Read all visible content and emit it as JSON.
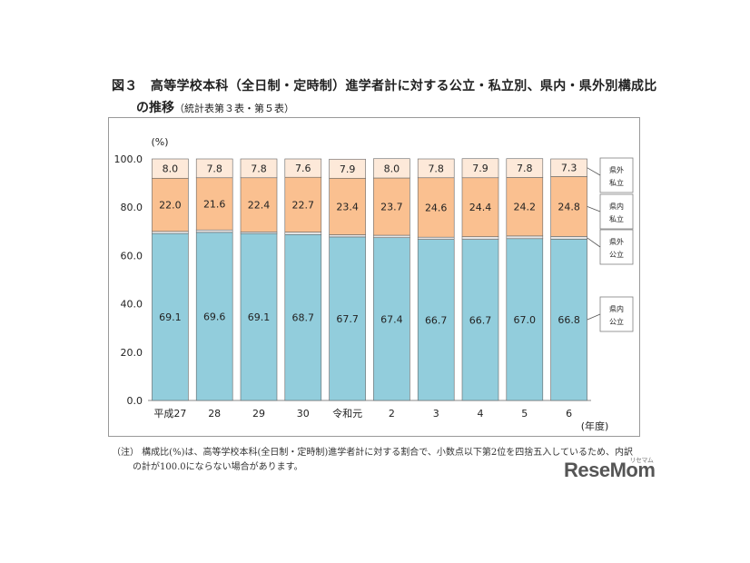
{
  "figure": {
    "title_line1": "図３　高等学校本科（全日制・定時制）進学者計に対する公立・私立別、県内・県外別構成比",
    "title_line2": "の推移",
    "title_source": "（統計表第３表・第５表）",
    "note_line1": "（注） 構成比(%)は、高等学校本科(全日制・定時制)進学者計に対する割合で、小数点以下第2位を四捨五入しているため、内訳",
    "note_line2": "の計が100.0にならない場合があります。"
  },
  "logo": {
    "text": "ReseMom",
    "sup": "リセマム"
  },
  "chart_data": {
    "type": "bar",
    "stacked": true,
    "ylabel": "(%)",
    "xlabel": "(年度)",
    "ylim": [
      0,
      100
    ],
    "yticks": [
      "0.0",
      "20.0",
      "40.0",
      "60.0",
      "80.0",
      "100.0"
    ],
    "categories": [
      "平成27",
      "28",
      "29",
      "30",
      "令和元",
      "2",
      "3",
      "4",
      "5",
      "6"
    ],
    "series": [
      {
        "name": "県内公立",
        "color": "#92CDDC",
        "values": [
          69.1,
          69.6,
          69.1,
          68.7,
          67.7,
          67.4,
          66.7,
          66.7,
          67.0,
          66.8
        ]
      },
      {
        "name": "県外公立",
        "color": "#E6E6E6",
        "values": [
          0.9,
          1.0,
          0.7,
          1.0,
          0.9,
          1.0,
          0.9,
          1.1,
          1.1,
          1.1
        ]
      },
      {
        "name": "県内私立",
        "color": "#FAC090",
        "values": [
          22.0,
          21.6,
          22.4,
          22.7,
          23.4,
          23.7,
          24.6,
          24.4,
          24.2,
          24.8
        ]
      },
      {
        "name": "県外私立",
        "color": "#FDE9D9",
        "values": [
          8.0,
          7.8,
          7.8,
          7.6,
          7.9,
          8.0,
          7.8,
          7.9,
          7.8,
          7.3
        ]
      }
    ],
    "legend": [
      {
        "line1": "県外",
        "line2": "私立"
      },
      {
        "line1": "県内",
        "line2": "私立"
      },
      {
        "line1": "県外",
        "line2": "公立"
      },
      {
        "line1": "県内",
        "line2": "公立"
      }
    ],
    "legend_position": "right"
  }
}
